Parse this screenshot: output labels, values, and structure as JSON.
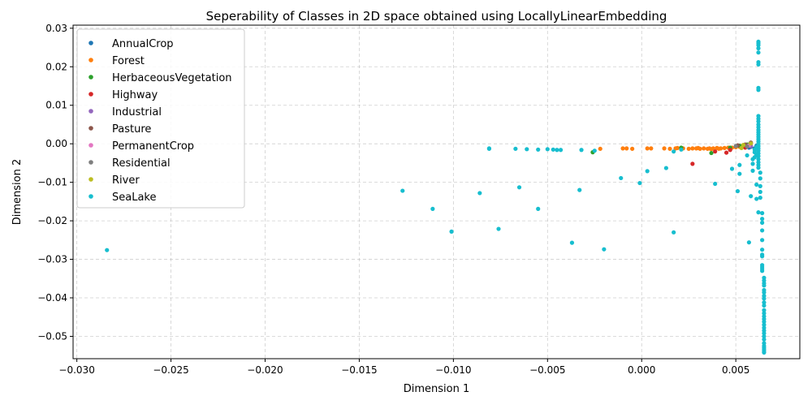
{
  "chart_data": {
    "type": "scatter",
    "title": "Seperability of Classes in 2D space obtained using LocallyLinearEmbedding",
    "xlabel": "Dimension 1",
    "ylabel": "Dimension 2",
    "xlim": [
      -0.0302,
      0.0084
    ],
    "ylim": [
      -0.0558,
      0.0308
    ],
    "grid": true,
    "legend_position": "top-left",
    "x_ticks": [
      {
        "v": -0.03,
        "label": "−0.030"
      },
      {
        "v": -0.025,
        "label": "−0.025"
      },
      {
        "v": -0.02,
        "label": "−0.020"
      },
      {
        "v": -0.015,
        "label": "−0.015"
      },
      {
        "v": -0.01,
        "label": "−0.010"
      },
      {
        "v": -0.005,
        "label": "−0.005"
      },
      {
        "v": 0.0,
        "label": "0.000"
      },
      {
        "v": 0.005,
        "label": "0.005"
      }
    ],
    "y_ticks": [
      {
        "v": 0.03,
        "label": "0.03"
      },
      {
        "v": 0.02,
        "label": "0.02"
      },
      {
        "v": 0.01,
        "label": "0.01"
      },
      {
        "v": 0.0,
        "label": "0.00"
      },
      {
        "v": -0.01,
        "label": "−0.01"
      },
      {
        "v": -0.02,
        "label": "−0.02"
      },
      {
        "v": -0.03,
        "label": "−0.03"
      },
      {
        "v": -0.04,
        "label": "−0.04"
      },
      {
        "v": -0.05,
        "label": "−0.05"
      }
    ],
    "series": [
      {
        "name": "AnnualCrop",
        "color": "#1f77b4",
        "points": [
          [
            0.0058,
            -0.0008
          ],
          [
            0.006,
            -0.0012
          ],
          [
            0.0061,
            -0.0005
          ],
          [
            0.0057,
            -0.001
          ]
        ]
      },
      {
        "name": "Forest",
        "color": "#ff7f0e",
        "points": [
          [
            -0.0022,
            -0.0013
          ],
          [
            -0.001,
            -0.0012
          ],
          [
            -0.0008,
            -0.0012
          ],
          [
            -0.0005,
            -0.0013
          ],
          [
            0.0003,
            -0.0012
          ],
          [
            0.0005,
            -0.0012
          ],
          [
            0.0012,
            -0.0012
          ],
          [
            0.0015,
            -0.0013
          ],
          [
            0.0018,
            -0.0012
          ],
          [
            0.0022,
            -0.0012
          ],
          [
            0.0025,
            -0.0013
          ],
          [
            0.0027,
            -0.0012
          ],
          [
            0.0029,
            -0.0012
          ],
          [
            0.0031,
            -0.0013
          ],
          [
            0.0033,
            -0.0012
          ],
          [
            0.0035,
            -0.0013
          ],
          [
            0.0036,
            -0.0012
          ],
          [
            0.0038,
            -0.0012
          ],
          [
            0.004,
            -0.0011
          ],
          [
            0.0042,
            -0.0012
          ],
          [
            0.0044,
            -0.0011
          ],
          [
            0.0046,
            -0.001
          ],
          [
            0.0048,
            -0.001
          ],
          [
            0.005,
            -0.0009
          ],
          [
            0.0052,
            -0.0008
          ],
          [
            0.0053,
            -0.0007
          ],
          [
            0.0054,
            -0.0006
          ],
          [
            0.0056,
            -0.0004
          ],
          [
            0.0057,
            -0.0002
          ],
          [
            0.0058,
            0.0
          ],
          [
            0.0037,
            -0.0014
          ],
          [
            0.0041,
            -0.0013
          ],
          [
            0.003,
            -0.0011
          ],
          [
            0.0019,
            -0.0011
          ]
        ]
      },
      {
        "name": "HerbaceousVegetation",
        "color": "#2ca02c",
        "points": [
          [
            -0.0026,
            -0.0022
          ],
          [
            0.0021,
            -0.001
          ],
          [
            0.0037,
            -0.0024
          ],
          [
            0.0047,
            -0.001
          ],
          [
            0.0052,
            -0.0005
          ],
          [
            0.0056,
            -0.0002
          ]
        ]
      },
      {
        "name": "Highway",
        "color": "#d62728",
        "points": [
          [
            0.0027,
            -0.0052
          ],
          [
            0.0039,
            -0.002
          ],
          [
            0.0045,
            -0.0023
          ],
          [
            0.0047,
            -0.0016
          ],
          [
            0.0055,
            -0.001
          ]
        ]
      },
      {
        "name": "Industrial",
        "color": "#9467bd",
        "points": [
          [
            0.0058,
            -0.0006
          ]
        ]
      },
      {
        "name": "Pasture",
        "color": "#8c564b",
        "points": [
          [
            0.0051,
            -0.0004
          ],
          [
            0.0055,
            -0.0002
          ],
          [
            0.0058,
            0.0003
          ]
        ]
      },
      {
        "name": "PermanentCrop",
        "color": "#e377c2",
        "points": [
          [
            0.0057,
            -0.0004
          ]
        ]
      },
      {
        "name": "Residential",
        "color": "#7f7f7f",
        "points": [
          [
            0.005,
            -0.0006
          ],
          [
            0.0056,
            -0.0007
          ]
        ]
      },
      {
        "name": "River",
        "color": "#bcbd22",
        "points": [
          [
            0.0054,
            -0.0003
          ],
          [
            0.0058,
            0.0001
          ],
          [
            0.0053,
            -0.0011
          ]
        ]
      },
      {
        "name": "SeaLake",
        "color": "#17becf",
        "points": [
          [
            -0.0284,
            -0.0276
          ],
          [
            -0.0127,
            -0.0122
          ],
          [
            -0.0111,
            -0.0169
          ],
          [
            -0.0101,
            -0.0228
          ],
          [
            -0.0086,
            -0.0128
          ],
          [
            -0.0081,
            -0.0013
          ],
          [
            -0.0081,
            -0.0012
          ],
          [
            -0.0076,
            -0.0221
          ],
          [
            -0.0067,
            -0.0013
          ],
          [
            -0.0065,
            -0.0113
          ],
          [
            -0.0061,
            -0.0014
          ],
          [
            -0.0055,
            -0.0015
          ],
          [
            -0.0055,
            -0.0169
          ],
          [
            -0.005,
            -0.0014
          ],
          [
            -0.0047,
            -0.0015
          ],
          [
            -0.0045,
            -0.0016
          ],
          [
            -0.0043,
            -0.0016
          ],
          [
            -0.0037,
            -0.0257
          ],
          [
            -0.0033,
            -0.012
          ],
          [
            -0.0032,
            -0.0016
          ],
          [
            -0.0025,
            -0.0018
          ],
          [
            -0.002,
            -0.0274
          ],
          [
            -0.0011,
            -0.0089
          ],
          [
            -0.0001,
            -0.0102
          ],
          [
            0.0003,
            -0.0071
          ],
          [
            0.0013,
            -0.0063
          ],
          [
            0.0017,
            -0.023
          ],
          [
            0.0017,
            -0.002
          ],
          [
            0.0021,
            -0.0015
          ],
          [
            0.0039,
            -0.0104
          ],
          [
            0.0048,
            -0.0065
          ],
          [
            0.0051,
            -0.0123
          ],
          [
            0.0052,
            -0.0078
          ],
          [
            0.0052,
            -0.0055
          ],
          [
            0.0056,
            -0.003
          ],
          [
            0.0057,
            -0.0256
          ],
          [
            0.0058,
            -0.0136
          ],
          [
            0.0059,
            -0.0052
          ],
          [
            0.0059,
            -0.007
          ],
          [
            0.0061,
            -0.0106
          ],
          [
            0.0061,
            -0.0143
          ],
          [
            0.0062,
            -0.0178
          ],
          [
            0.0062,
            0.0265
          ],
          [
            0.0062,
            0.0261
          ],
          [
            0.0062,
            0.0256
          ],
          [
            0.0062,
            0.0248
          ],
          [
            0.0062,
            0.0237
          ],
          [
            0.0062,
            0.0212
          ],
          [
            0.0062,
            0.0206
          ],
          [
            0.0062,
            0.0145
          ],
          [
            0.0062,
            0.014
          ],
          [
            0.0062,
            0.0072
          ],
          [
            0.0062,
            0.0065
          ],
          [
            0.0062,
            0.0058
          ],
          [
            0.0062,
            0.005
          ],
          [
            0.0062,
            0.0043
          ],
          [
            0.0062,
            0.0036
          ],
          [
            0.0062,
            0.003
          ],
          [
            0.0062,
            0.0024
          ],
          [
            0.0062,
            0.0018
          ],
          [
            0.0062,
            0.0012
          ],
          [
            0.0062,
            0.0006
          ],
          [
            0.0062,
            0.0
          ],
          [
            0.0062,
            -0.0006
          ],
          [
            0.0062,
            -0.0012
          ],
          [
            0.0062,
            -0.0018
          ],
          [
            0.0062,
            -0.0025
          ],
          [
            0.0062,
            -0.0032
          ],
          [
            0.0062,
            -0.004
          ],
          [
            0.0062,
            -0.0048
          ],
          [
            0.0062,
            -0.0055
          ],
          [
            0.0062,
            -0.0062
          ],
          [
            0.0061,
            -0.0008
          ],
          [
            0.006,
            -0.0015
          ],
          [
            0.006,
            -0.0022
          ],
          [
            0.0061,
            -0.0028
          ],
          [
            0.006,
            -0.0035
          ],
          [
            0.0059,
            -0.004
          ],
          [
            0.0063,
            -0.0075
          ],
          [
            0.0063,
            -0.009
          ],
          [
            0.0063,
            -0.011
          ],
          [
            0.0063,
            -0.0125
          ],
          [
            0.0063,
            -0.014
          ],
          [
            0.0064,
            -0.018
          ],
          [
            0.0064,
            -0.0195
          ],
          [
            0.0064,
            -0.0205
          ],
          [
            0.0064,
            -0.0225
          ],
          [
            0.0064,
            -0.025
          ],
          [
            0.0064,
            -0.0275
          ],
          [
            0.0064,
            -0.0288
          ],
          [
            0.0064,
            -0.0292
          ],
          [
            0.0064,
            -0.0315
          ],
          [
            0.0064,
            -0.032
          ],
          [
            0.0064,
            -0.0325
          ],
          [
            0.0064,
            -0.033
          ],
          [
            0.0065,
            -0.0348
          ],
          [
            0.0065,
            -0.0355
          ],
          [
            0.0065,
            -0.0362
          ],
          [
            0.0065,
            -0.0368
          ],
          [
            0.0065,
            -0.038
          ],
          [
            0.0065,
            -0.0386
          ],
          [
            0.0065,
            -0.0395
          ],
          [
            0.0065,
            -0.0402
          ],
          [
            0.0065,
            -0.0412
          ],
          [
            0.0065,
            -0.042
          ],
          [
            0.0065,
            -0.0432
          ],
          [
            0.0065,
            -0.044
          ],
          [
            0.0065,
            -0.0448
          ],
          [
            0.0065,
            -0.0455
          ],
          [
            0.0065,
            -0.0462
          ],
          [
            0.0065,
            -0.047
          ],
          [
            0.0065,
            -0.0478
          ],
          [
            0.0065,
            -0.0485
          ],
          [
            0.0065,
            -0.0492
          ],
          [
            0.0065,
            -0.05
          ],
          [
            0.0065,
            -0.0508
          ],
          [
            0.0065,
            -0.0518
          ],
          [
            0.0065,
            -0.0525
          ],
          [
            0.0065,
            -0.053
          ],
          [
            0.0065,
            -0.0535
          ],
          [
            0.0065,
            -0.054
          ],
          [
            0.0065,
            -0.0542
          ]
        ]
      }
    ]
  }
}
